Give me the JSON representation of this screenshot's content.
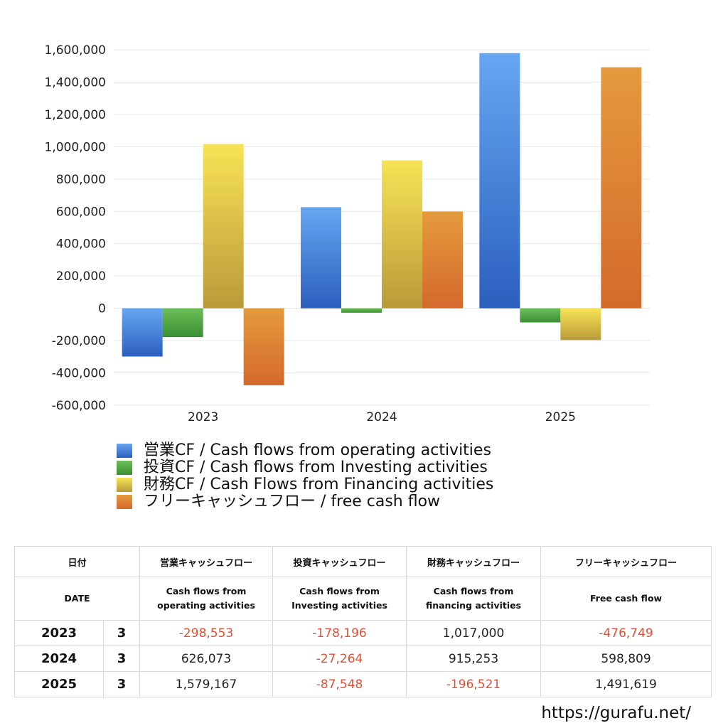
{
  "chart_data": {
    "type": "bar",
    "categories": [
      "2023",
      "2024",
      "2025"
    ],
    "series": [
      {
        "name": "営業CF / Cash flows from operating activities",
        "values": [
          -298553,
          626073,
          1579167
        ],
        "color_top": "#66a6f1",
        "color_bottom": "#2b5fbf"
      },
      {
        "name": "投資CF / Cash flows from Investing activities",
        "values": [
          -178196,
          -27264,
          -87548
        ],
        "color_top": "#6cbf57",
        "color_bottom": "#3a8f35"
      },
      {
        "name": "財務CF / Cash Flows from Financing activities",
        "values": [
          1017000,
          915253,
          -196521
        ],
        "color_top": "#f8e356",
        "color_bottom": "#b99a3a"
      },
      {
        "name": "フリーキャッシュフロー / free cash flow",
        "values": [
          -476749,
          598809,
          1491619
        ],
        "color_top": "#e59a3d",
        "color_bottom": "#d4692c"
      }
    ],
    "ylim": [
      -600000,
      1600000
    ],
    "yticks": [
      -600000,
      -400000,
      -200000,
      0,
      200000,
      400000,
      600000,
      800000,
      1000000,
      1200000,
      1400000,
      1600000
    ],
    "ytick_labels": [
      "-600,000",
      "-400,000",
      "-200,000",
      "0",
      "200,000",
      "400,000",
      "600,000",
      "800,000",
      "1,000,000",
      "1,200,000",
      "1,400,000",
      "1,600,000"
    ],
    "grid": true,
    "legend_position": "bottom"
  },
  "table": {
    "headers_ja": [
      "日付",
      "営業キャッシュフロー",
      "投資キャッシュフロー",
      "財務キャッシュフロー",
      "フリーキャッシュフロー"
    ],
    "headers_en": [
      "DATE",
      "Cash flows from\noperating activities",
      "Cash flows from\nInvesting activities",
      "Cash flows from\nfinancing activities",
      "Free cash flow"
    ],
    "rows": [
      {
        "year": "2023",
        "month": "3",
        "values": [
          "-298,553",
          "-178,196",
          "1,017,000",
          "-476,749"
        ]
      },
      {
        "year": "2024",
        "month": "3",
        "values": [
          "626,073",
          "-27,264",
          "915,253",
          "598,809"
        ]
      },
      {
        "year": "2025",
        "month": "3",
        "values": [
          "1,579,167",
          "-87,548",
          "-196,521",
          "1,491,619"
        ]
      }
    ]
  },
  "source": "https://gurafu.net/"
}
